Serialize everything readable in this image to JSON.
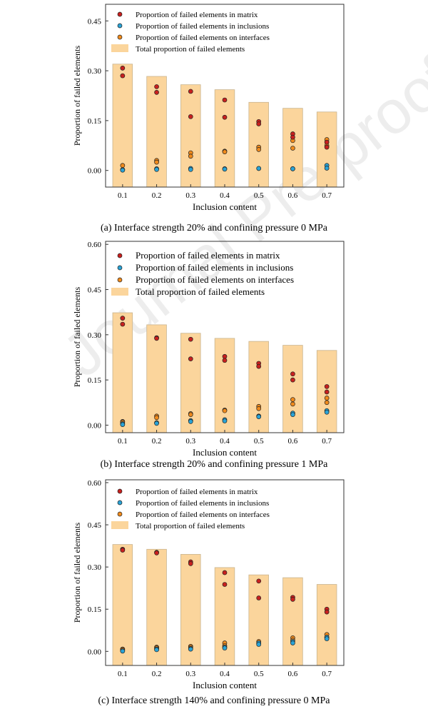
{
  "watermark": "Journal Pre-proofs",
  "colors": {
    "matrix": "#c8201e",
    "inclusions": "#2aa3d6",
    "interfaces": "#f08a1c",
    "total": "#fbd59c",
    "total_edge": "#c9b48e"
  },
  "chart_data": [
    {
      "type": "bar",
      "caption": "(a) Interface strength 20% and confining pressure 0 MPa",
      "xlabel": "Inclusion content",
      "ylabel": "Proportion of failed elements",
      "categories": [
        "0.1",
        "0.2",
        "0.3",
        "0.4",
        "0.5",
        "0.6",
        "0.7"
      ],
      "ylim": [
        -0.05,
        0.5
      ],
      "yticks": [
        "0.00",
        "0.15",
        "0.30",
        "0.45"
      ],
      "legend": [
        "Proportion of failed elements in matrix",
        "Proportion of failed elements in inclusions",
        "Proportion of failed elements on interfaces",
        "Total proportion of failed elements"
      ],
      "total": [
        0.32,
        0.283,
        0.258,
        0.243,
        0.205,
        0.187,
        0.176
      ],
      "matrix": [
        [
          0.308,
          0.285
        ],
        [
          0.252,
          0.235
        ],
        [
          0.238,
          0.162
        ],
        [
          0.212,
          0.16
        ],
        [
          0.147,
          0.14
        ],
        [
          0.11,
          0.1
        ],
        [
          0.085,
          0.07
        ]
      ],
      "inclusions": [
        [
          0.002,
          0.001
        ],
        [
          0.005,
          0.003
        ],
        [
          0.006,
          0.003
        ],
        [
          0.005,
          0.004
        ],
        [
          0.006,
          0.006
        ],
        [
          0.005,
          0.005
        ],
        [
          0.015,
          0.007
        ]
      ],
      "interfaces": [
        [
          0.015,
          0.002
        ],
        [
          0.03,
          0.025
        ],
        [
          0.053,
          0.043
        ],
        [
          0.058,
          0.056
        ],
        [
          0.07,
          0.063
        ],
        [
          0.09,
          0.067
        ],
        [
          0.093,
          0.075
        ]
      ]
    },
    {
      "type": "bar",
      "caption": "(b) Interface strength 20% and confining pressure 1 MPa",
      "xlabel": "Inclusion content",
      "ylabel": "Proportion of failed elements",
      "categories": [
        "0.1",
        "0.2",
        "0.3",
        "0.4",
        "0.5",
        "0.6",
        "0.7"
      ],
      "ylim": [
        -0.025,
        0.61
      ],
      "yticks": [
        "0.00",
        "0.15",
        "0.30",
        "0.45",
        "0.60"
      ],
      "legend": [
        "Proportion of failed elements in matrix",
        "Proportion of failed elements in inclusions",
        "Proportion of failed elements on interfaces",
        "Total proportion of failed elements"
      ],
      "total": [
        0.373,
        0.333,
        0.305,
        0.288,
        0.278,
        0.265,
        0.248
      ],
      "matrix": [
        [
          0.355,
          0.335
        ],
        [
          0.29,
          0.288
        ],
        [
          0.285,
          0.22
        ],
        [
          0.228,
          0.215
        ],
        [
          0.205,
          0.195
        ],
        [
          0.17,
          0.15
        ],
        [
          0.128,
          0.11
        ]
      ],
      "inclusions": [
        [
          0.005,
          0.002
        ],
        [
          0.008,
          0.006
        ],
        [
          0.015,
          0.012
        ],
        [
          0.018,
          0.014
        ],
        [
          0.03,
          0.028
        ],
        [
          0.04,
          0.035
        ],
        [
          0.048,
          0.043
        ]
      ],
      "interfaces": [
        [
          0.012,
          0.01
        ],
        [
          0.03,
          0.025
        ],
        [
          0.038,
          0.035
        ],
        [
          0.05,
          0.048
        ],
        [
          0.062,
          0.055
        ],
        [
          0.085,
          0.07
        ],
        [
          0.09,
          0.075
        ]
      ]
    },
    {
      "type": "bar",
      "caption": "(c) Interface strength 140% and confining pressure 0 MPa",
      "xlabel": "Inclusion content",
      "ylabel": "Proportion of failed elements",
      "categories": [
        "0.1",
        "0.2",
        "0.3",
        "0.4",
        "0.5",
        "0.6",
        "0.7"
      ],
      "ylim": [
        -0.05,
        0.61
      ],
      "yticks": [
        "0.00",
        "0.15",
        "0.30",
        "0.45",
        "0.60"
      ],
      "legend": [
        "Proportion of failed elements in matrix",
        "Proportion of failed elements in inclusions",
        "Proportion of failed elements on interfaces",
        "Total proportion of failed elements"
      ],
      "total": [
        0.38,
        0.363,
        0.345,
        0.298,
        0.272,
        0.262,
        0.238
      ],
      "matrix": [
        [
          0.363,
          0.36
        ],
        [
          0.352,
          0.35
        ],
        [
          0.318,
          0.312
        ],
        [
          0.28,
          0.238
        ],
        [
          0.25,
          0.19
        ],
        [
          0.192,
          0.185
        ],
        [
          0.15,
          0.14
        ]
      ],
      "inclusions": [
        [
          0.002,
          0.001
        ],
        [
          0.008,
          0.006
        ],
        [
          0.01,
          0.008
        ],
        [
          0.015,
          0.012
        ],
        [
          0.03,
          0.025
        ],
        [
          0.035,
          0.03
        ],
        [
          0.05,
          0.045
        ]
      ],
      "interfaces": [
        [
          0.008,
          0.006
        ],
        [
          0.015,
          0.012
        ],
        [
          0.018,
          0.014
        ],
        [
          0.03,
          0.02
        ],
        [
          0.035,
          0.028
        ],
        [
          0.048,
          0.04
        ],
        [
          0.06,
          0.05
        ]
      ]
    }
  ]
}
